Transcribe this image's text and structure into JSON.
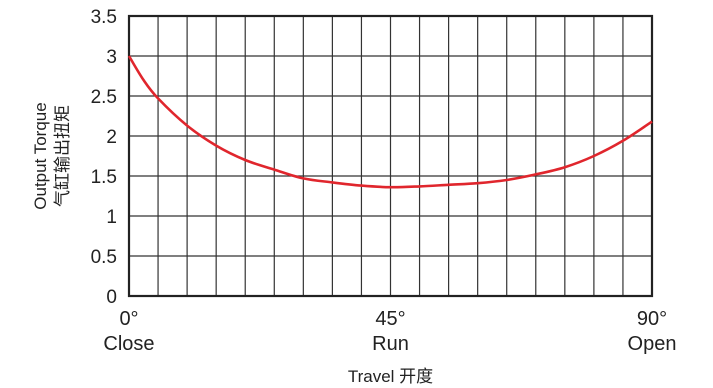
{
  "chart_data": {
    "type": "line",
    "xlabel": "Travel 开度",
    "ylabel_lines": [
      "Output Torque",
      "气缸输出扭矩"
    ],
    "ylim": [
      0,
      3.5
    ],
    "xlim": [
      0,
      90
    ],
    "y_ticks": [
      {
        "value": 0,
        "label": "0"
      },
      {
        "value": 0.5,
        "label": "0.5"
      },
      {
        "value": 1,
        "label": "1"
      },
      {
        "value": 1.5,
        "label": "1.5"
      },
      {
        "value": 2,
        "label": "2"
      },
      {
        "value": 2.5,
        "label": "2.5"
      },
      {
        "value": 3,
        "label": "3"
      },
      {
        "value": 3.5,
        "label": "3.5"
      }
    ],
    "x_ticks": [
      {
        "value": 0,
        "label": "0°",
        "sublabel": "Close"
      },
      {
        "value": 45,
        "label": "45°",
        "sublabel": "Run"
      },
      {
        "value": 90,
        "label": "90°",
        "sublabel": "Open"
      }
    ],
    "grid": true,
    "grid_x_step": 5,
    "grid_y_step": 0.5,
    "series": [
      {
        "color": "#e0262d",
        "x": [
          0,
          2.5,
          5,
          10,
          15,
          20,
          25,
          30,
          35,
          40,
          45,
          50,
          55,
          60,
          65,
          70,
          75,
          80,
          85,
          90
        ],
        "y": [
          3.0,
          2.7,
          2.47,
          2.13,
          1.88,
          1.7,
          1.58,
          1.47,
          1.42,
          1.38,
          1.36,
          1.37,
          1.39,
          1.41,
          1.45,
          1.52,
          1.61,
          1.75,
          1.94,
          2.18
        ]
      }
    ]
  }
}
